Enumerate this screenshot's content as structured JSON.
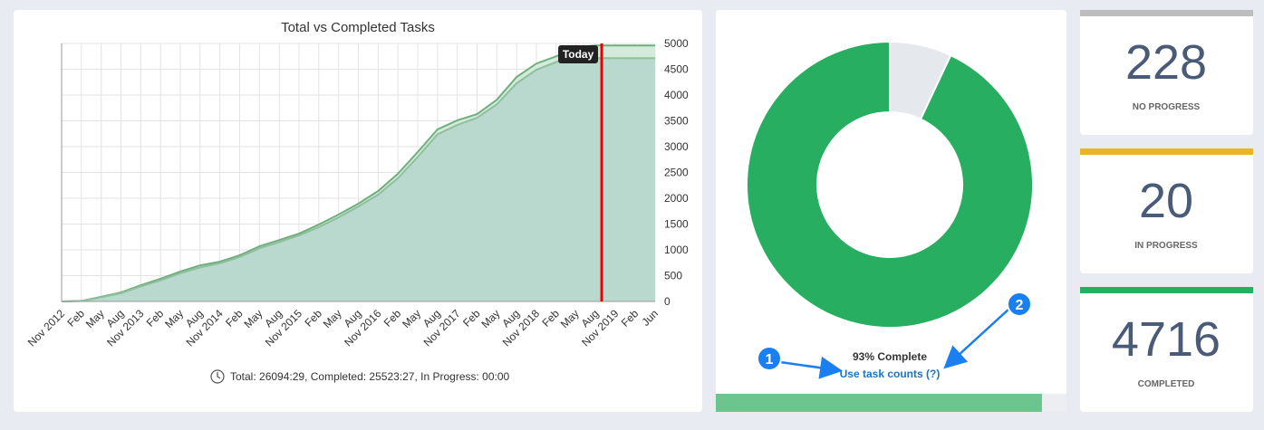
{
  "chart_data": [
    {
      "type": "area",
      "title": "Total vs Completed Tasks",
      "categories": [
        "Nov 2012",
        "Feb",
        "May",
        "Aug",
        "Nov 2013",
        "Feb",
        "May",
        "Aug",
        "Nov 2014",
        "Feb",
        "May",
        "Aug",
        "Nov 2015",
        "Feb",
        "May",
        "Aug",
        "Nov 2016",
        "Feb",
        "May",
        "Aug",
        "Nov 2017",
        "Feb",
        "May",
        "Aug",
        "Nov 2018",
        "Feb",
        "May",
        "Aug",
        "Nov 2019",
        "Feb",
        "Jun"
      ],
      "series": [
        {
          "name": "Total",
          "color": "#6fae7d",
          "fill": "#d4ebdc",
          "values": [
            0,
            10,
            90,
            175,
            315,
            440,
            580,
            700,
            770,
            895,
            1070,
            1190,
            1315,
            1490,
            1685,
            1895,
            2140,
            2475,
            2895,
            3335,
            3510,
            3630,
            3910,
            4350,
            4610,
            4750,
            4930,
            4960,
            4960,
            4960,
            4960
          ]
        },
        {
          "name": "Completed",
          "color": "#8fbf9c",
          "fill": "#b9d9ce",
          "values": [
            0,
            8,
            80,
            160,
            290,
            410,
            545,
            660,
            740,
            860,
            1030,
            1150,
            1280,
            1440,
            1630,
            1840,
            2070,
            2390,
            2800,
            3240,
            3420,
            3560,
            3820,
            4230,
            4490,
            4640,
            4716,
            4716,
            4716,
            4716,
            4716
          ]
        }
      ],
      "ylim": [
        0,
        5000
      ],
      "yticks": [
        0,
        500,
        1000,
        1500,
        2000,
        2500,
        3000,
        3500,
        4000,
        4500,
        5000
      ],
      "grid": true,
      "today_label": "Today",
      "footer": "Total: 26094:29, Completed: 25523:27, In Progress: 00:00"
    },
    {
      "type": "pie",
      "donut": true,
      "values": [
        93,
        7
      ],
      "colors": [
        "#27ae60",
        "#e5e8ec"
      ],
      "label": "93% Complete",
      "link": "Use task counts (?)"
    }
  ],
  "progress": {
    "value": 93,
    "max": 100,
    "color": "#6cc58c"
  },
  "callouts": [
    "1",
    "2"
  ],
  "stats": [
    {
      "value": "228",
      "label": "NO PROGRESS",
      "color": "#bdbdbd"
    },
    {
      "value": "20",
      "label": "IN PROGRESS",
      "color": "#e6b626"
    },
    {
      "value": "4716",
      "label": "COMPLETED",
      "color": "#27ae60"
    }
  ]
}
